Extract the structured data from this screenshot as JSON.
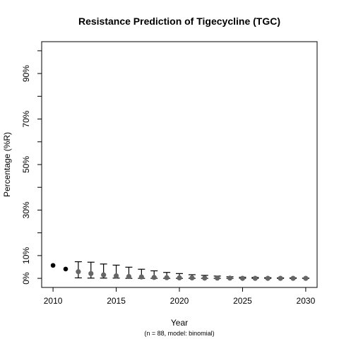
{
  "chart_data": {
    "type": "scatter",
    "title": "Resistance Prediction of Tigecycline (TGC)",
    "xlabel": "Year",
    "ylabel": "Percentage (%R)",
    "footnote": "(n = 88, model: binomial)",
    "xlim": [
      2009.1,
      2030.9
    ],
    "ylim": [
      -4,
      104
    ],
    "x_ticks": [
      2010,
      2015,
      2020,
      2025,
      2030
    ],
    "x_tick_labels": [
      "2010",
      "2015",
      "2020",
      "2025",
      "2030"
    ],
    "y_ticks": [
      0,
      10,
      30,
      50,
      70,
      90
    ],
    "y_tick_labels": [
      "0%",
      "10%",
      "30%",
      "50%",
      "70%",
      "90%"
    ],
    "y_minor_ticks": [
      20,
      40,
      60,
      80,
      100
    ],
    "grid": false,
    "series": [
      {
        "kind": "observed",
        "color": "#000000",
        "points": [
          {
            "x": 2010,
            "y": 5.7
          },
          {
            "x": 2011,
            "y": 4.1
          }
        ]
      },
      {
        "kind": "predicted",
        "color": "#666666",
        "points": [
          {
            "x": 2012,
            "y": 2.9,
            "lo": 0.2,
            "hi": 7.3
          },
          {
            "x": 2013,
            "y": 2.1,
            "lo": 0.1,
            "hi": 7.1
          },
          {
            "x": 2014,
            "y": 1.5,
            "lo": 0.1,
            "hi": 6.3
          },
          {
            "x": 2015,
            "y": 1.1,
            "lo": 0.1,
            "hi": 5.8
          },
          {
            "x": 2016,
            "y": 0.8,
            "lo": 0.0,
            "hi": 4.9
          },
          {
            "x": 2017,
            "y": 0.6,
            "lo": 0.0,
            "hi": 4.0
          },
          {
            "x": 2018,
            "y": 0.4,
            "lo": 0.0,
            "hi": 3.3
          },
          {
            "x": 2019,
            "y": 0.3,
            "lo": 0.0,
            "hi": 2.6
          },
          {
            "x": 2020,
            "y": 0.2,
            "lo": 0.0,
            "hi": 2.1
          },
          {
            "x": 2021,
            "y": 0.2,
            "lo": 0.0,
            "hi": 1.6
          },
          {
            "x": 2022,
            "y": 0.1,
            "lo": 0.0,
            "hi": 1.3
          },
          {
            "x": 2023,
            "y": 0.1,
            "lo": 0.0,
            "hi": 1.0
          },
          {
            "x": 2024,
            "y": 0.1,
            "lo": 0.0,
            "hi": 0.7
          },
          {
            "x": 2025,
            "y": 0.0,
            "lo": 0.0,
            "hi": 0.5
          },
          {
            "x": 2026,
            "y": 0.0,
            "lo": 0.0,
            "hi": 0.4
          },
          {
            "x": 2027,
            "y": 0.0,
            "lo": 0.0,
            "hi": 0.3
          },
          {
            "x": 2028,
            "y": 0.0,
            "lo": 0.0,
            "hi": 0.2
          },
          {
            "x": 2029,
            "y": 0.0,
            "lo": 0.0,
            "hi": 0.2
          },
          {
            "x": 2030,
            "y": 0.0,
            "lo": 0.0,
            "hi": 0.1
          }
        ]
      }
    ]
  }
}
